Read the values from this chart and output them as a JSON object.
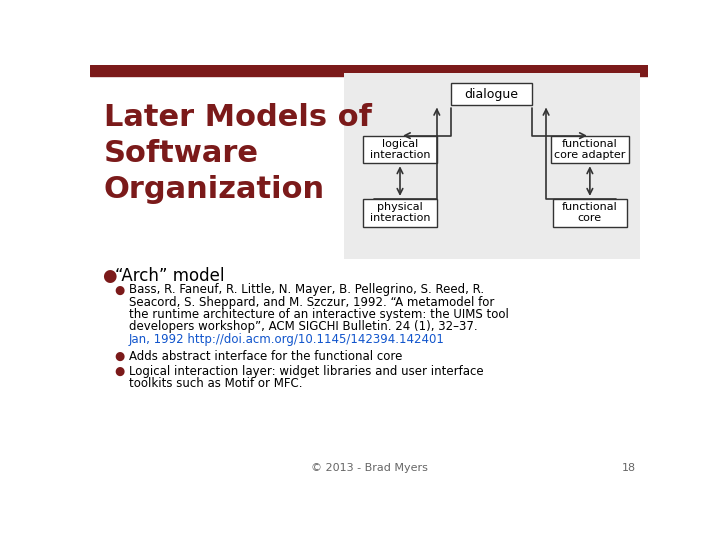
{
  "title": "Later Models of\nSoftware\nOrganization",
  "title_color": "#7B1A1A",
  "background_color": "#FFFFFF",
  "top_bar_color": "#7B1A1A",
  "bullet1": "“Arch” model",
  "bullet2_lines": [
    "Bass, R. Faneuf, R. Little, N. Mayer, B. Pellegrino, S. Reed, R.",
    "Seacord, S. Sheppard, and M. Szczur, 1992. “A metamodel for",
    "the runtime architecture of an interactive system: the UIMS tool",
    "developers workshop”, ACM SIGCHI Bulletin. 24 (1), 32–37.",
    "Jan, 1992 http://doi.acm.org/10.1145/142394.142401"
  ],
  "bullet3": "Adds abstract interface for the functional core",
  "bullet4_lines": [
    "Logical interaction layer: widget libraries and user interface",
    "toolkits such as Motif or MFC."
  ],
  "footer": "© 2013 - Brad Myers",
  "page_num": "18",
  "diagram_bg": "#EBEBEB",
  "bullet_color": "#7B1A1A",
  "link_color": "#1155CC",
  "box_edge": "#333333",
  "box_fill": "#FFFFFF",
  "arrow_color": "#333333"
}
